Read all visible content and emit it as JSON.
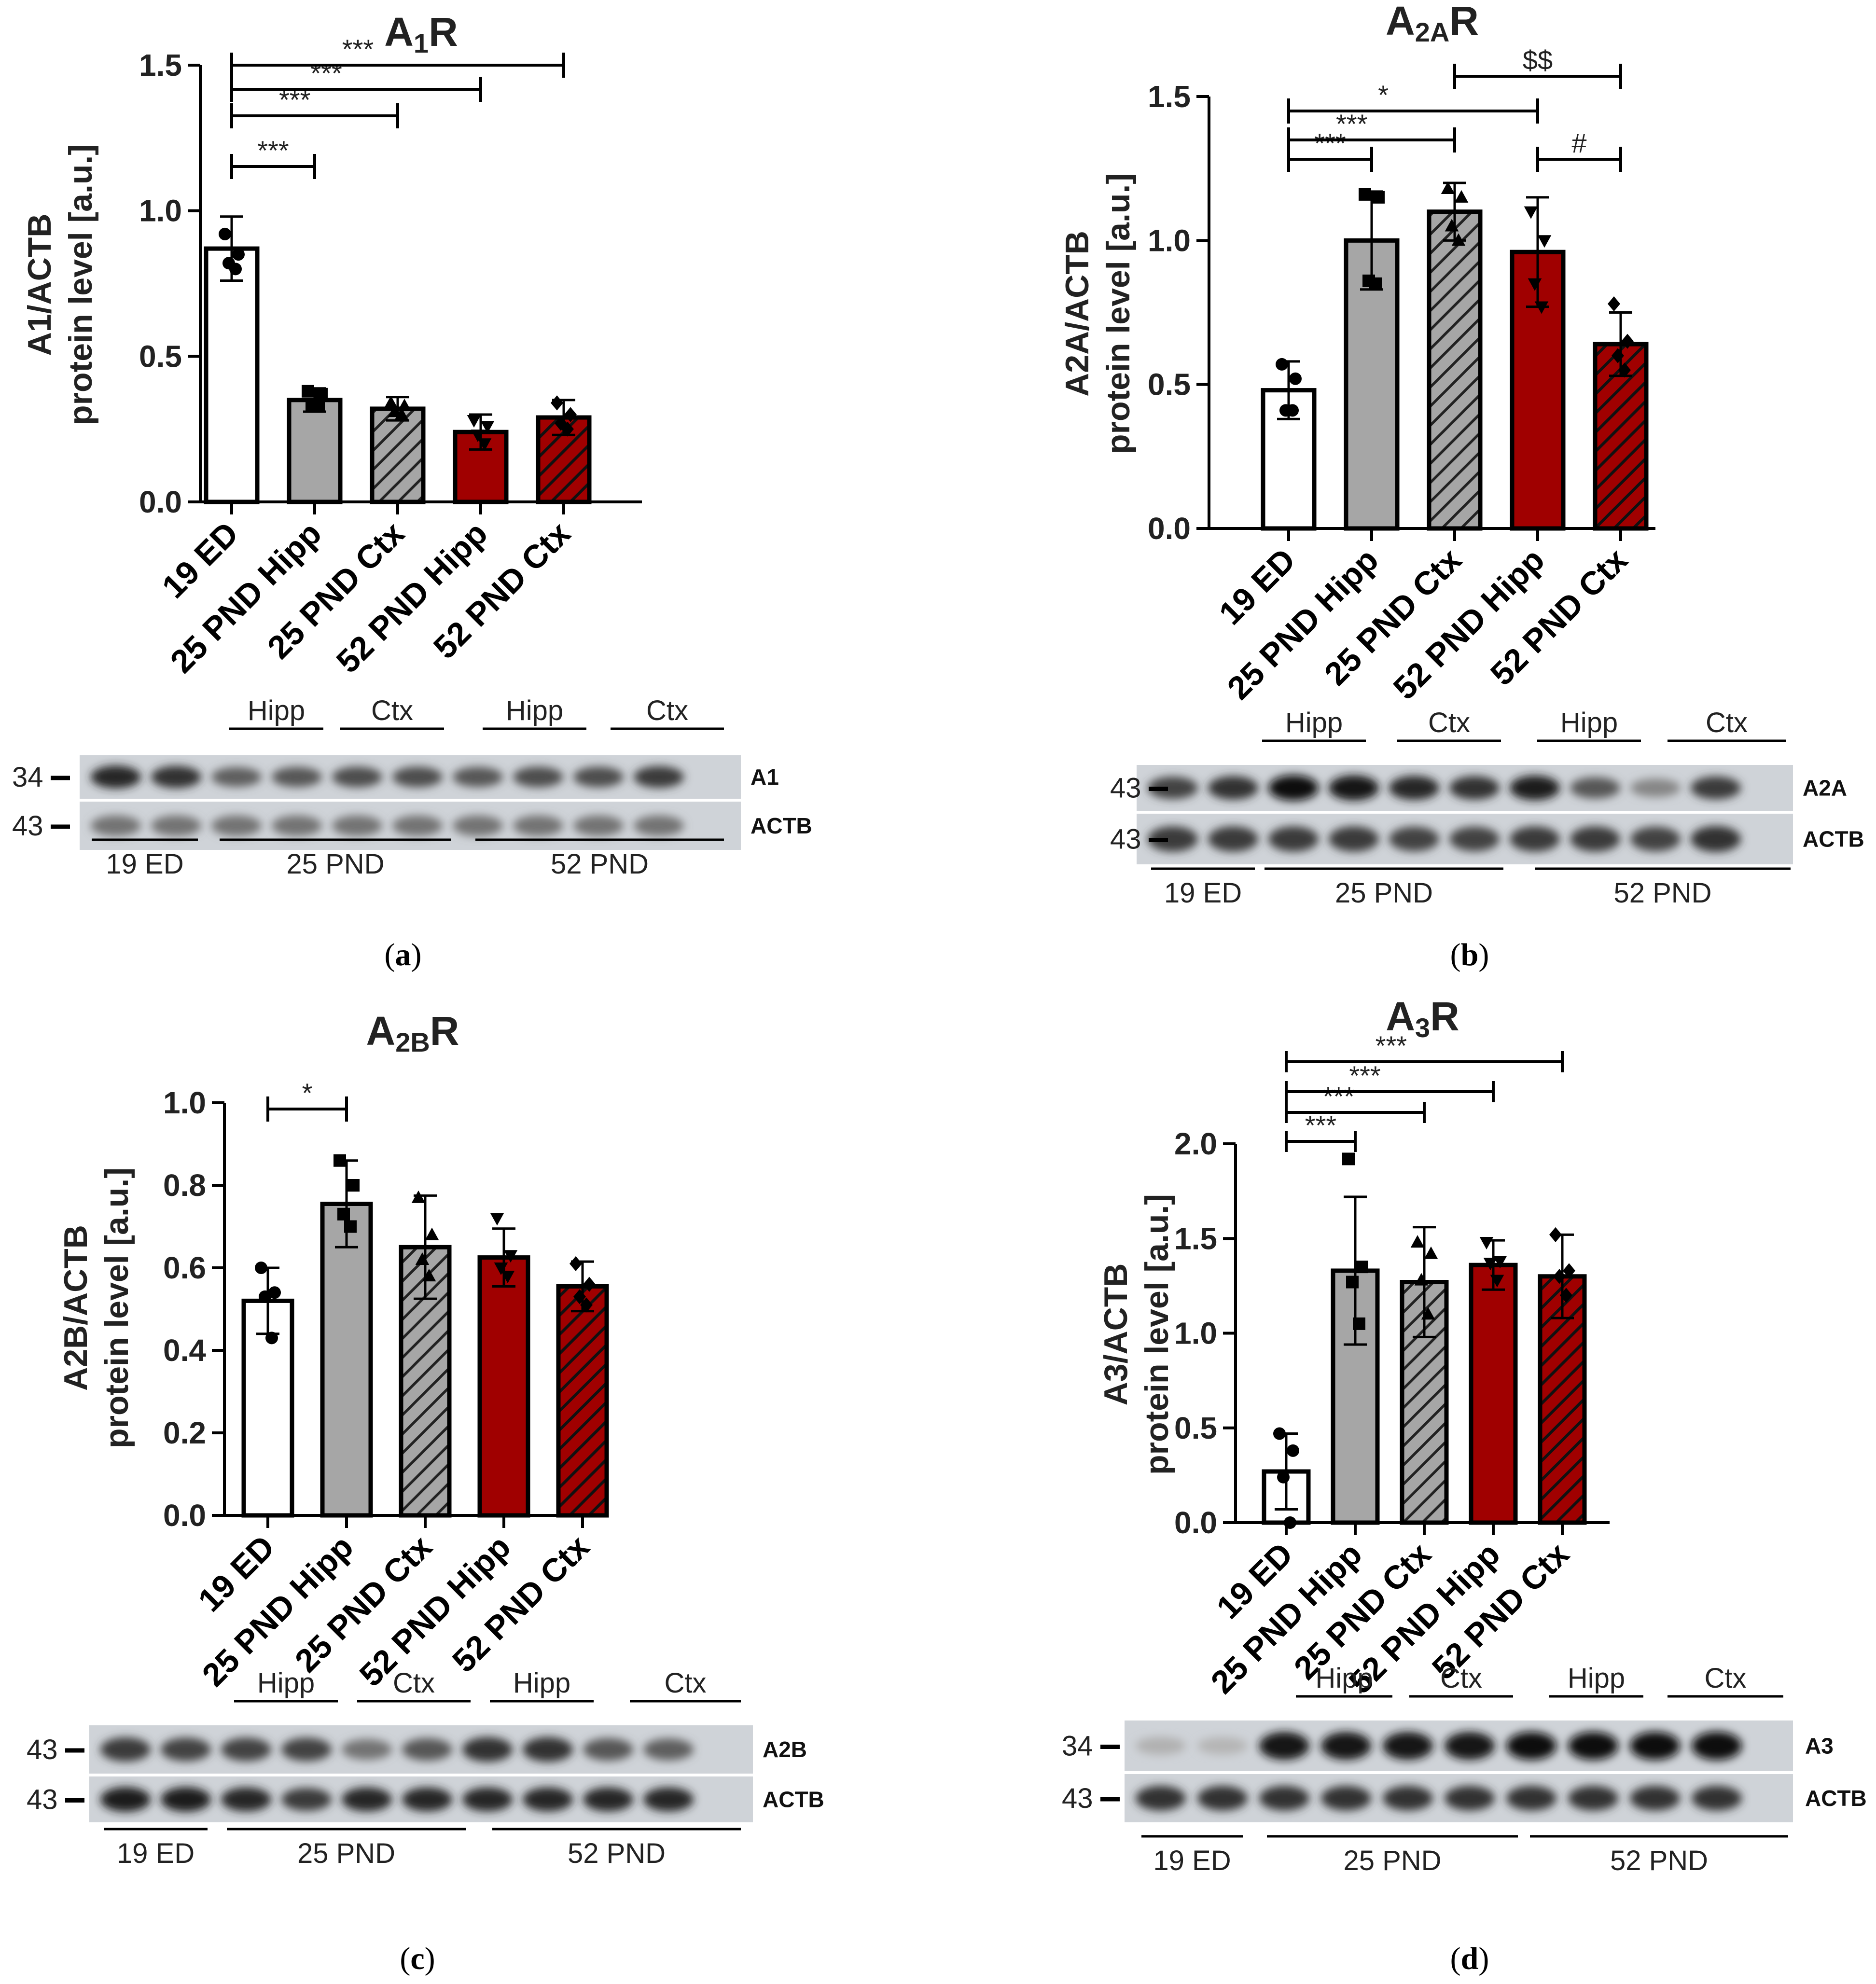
{
  "chart_data": [
    {
      "type": "bar",
      "panel_label": "a",
      "title": "A",
      "title_sub": "1",
      "title_suffix": "R",
      "ylabel_line1": "A1/ACTB",
      "ylabel_line2": "protein level [a.u.]",
      "categories": [
        "19 ED",
        "25 PND Hipp",
        "25 PND Ctx",
        "52 PND Hipp",
        "52 PND Ctx"
      ],
      "values": [
        0.87,
        0.35,
        0.32,
        0.24,
        0.29
      ],
      "errors": [
        0.11,
        0.04,
        0.04,
        0.06,
        0.06
      ],
      "points": [
        [
          0.92,
          0.85,
          0.82,
          0.8
        ],
        [
          0.38,
          0.37,
          0.33,
          0.33
        ],
        [
          0.34,
          0.33,
          0.31,
          0.3
        ],
        [
          0.28,
          0.26,
          0.23,
          0.2
        ],
        [
          0.34,
          0.3,
          0.27,
          0.25
        ]
      ],
      "ylim": [
        0,
        1.5
      ],
      "yticks": [
        "0.0",
        "0.5",
        "1.0",
        "1.5"
      ],
      "significance": [
        {
          "from": 0,
          "to": 1,
          "label": "***"
        },
        {
          "from": 0,
          "to": 2,
          "label": "***"
        },
        {
          "from": 0,
          "to": 3,
          "label": "***"
        },
        {
          "from": 0,
          "to": 4,
          "label": "***"
        }
      ],
      "blot": {
        "top_labels": [
          "Hipp",
          "Ctx",
          "Hipp",
          "Ctx"
        ],
        "bands": [
          "A1",
          "ACTB"
        ],
        "markers": [
          "34",
          "43"
        ],
        "bottom_labels": [
          "19 ED",
          "25 PND",
          "52 PND"
        ]
      }
    },
    {
      "type": "bar",
      "panel_label": "b",
      "title": "A",
      "title_sub": "2A",
      "title_suffix": "R",
      "ylabel_line1": "A2A/ACTB",
      "ylabel_line2": "protein level [a.u.]",
      "categories": [
        "19 ED",
        "25 PND Hipp",
        "25 PND Ctx",
        "52 PND Hipp",
        "52 PND Ctx"
      ],
      "values": [
        0.48,
        1.0,
        1.1,
        0.96,
        0.64
      ],
      "errors": [
        0.1,
        0.17,
        0.1,
        0.19,
        0.11
      ],
      "points": [
        [
          0.57,
          0.52,
          0.41,
          0.41
        ],
        [
          1.16,
          1.15,
          0.86,
          0.85
        ],
        [
          1.18,
          1.15,
          1.05,
          1.0
        ],
        [
          1.1,
          1.0,
          0.85,
          0.77
        ],
        [
          0.78,
          0.65,
          0.6,
          0.55
        ]
      ],
      "ylim": [
        0,
        1.5
      ],
      "yticks": [
        "0.0",
        "0.5",
        "1.0",
        "1.5"
      ],
      "significance": [
        {
          "from": 0,
          "to": 1,
          "label": "***"
        },
        {
          "from": 0,
          "to": 2,
          "label": "***"
        },
        {
          "from": 0,
          "to": 3,
          "label": "*"
        },
        {
          "from": 2,
          "to": 4,
          "label": "$$"
        },
        {
          "from": 3,
          "to": 4,
          "label": "#"
        }
      ],
      "blot": {
        "top_labels": [
          "Hipp",
          "Ctx",
          "Hipp",
          "Ctx"
        ],
        "bands": [
          "A2A",
          "ACTB"
        ],
        "markers": [
          "43",
          "43"
        ],
        "bottom_labels": [
          "19 ED",
          "25 PND",
          "52 PND"
        ]
      }
    },
    {
      "type": "bar",
      "panel_label": "c",
      "title": "A",
      "title_sub": "2B",
      "title_suffix": "R",
      "ylabel_line1": "A2B/ACTB",
      "ylabel_line2": "protein level [a.u.]",
      "categories": [
        "19 ED",
        "25 PND Hipp",
        "25 PND Ctx",
        "52 PND Hipp",
        "52 PND Ctx"
      ],
      "values": [
        0.52,
        0.755,
        0.65,
        0.625,
        0.555
      ],
      "errors": [
        0.08,
        0.105,
        0.125,
        0.07,
        0.06
      ],
      "points": [
        [
          0.6,
          0.54,
          0.53,
          0.43
        ],
        [
          0.86,
          0.8,
          0.73,
          0.7
        ],
        [
          0.77,
          0.68,
          0.62,
          0.58
        ],
        [
          0.72,
          0.63,
          0.6,
          0.58
        ],
        [
          0.61,
          0.56,
          0.53,
          0.51
        ]
      ],
      "ylim": [
        0,
        1.0
      ],
      "yticks": [
        "0.0",
        "0.2",
        "0.4",
        "0.6",
        "0.8",
        "1.0"
      ],
      "significance": [
        {
          "from": 0,
          "to": 1,
          "label": "*"
        }
      ],
      "blot": {
        "top_labels": [
          "Hipp",
          "Ctx",
          "Hipp",
          "Ctx"
        ],
        "bands": [
          "A2B",
          "ACTB"
        ],
        "markers": [
          "43",
          "43"
        ],
        "bottom_labels": [
          "19 ED",
          "25 PND",
          "52 PND"
        ]
      }
    },
    {
      "type": "bar",
      "panel_label": "d",
      "title": "A",
      "title_sub": "3",
      "title_suffix": "R",
      "ylabel_line1": "A3/ACTB",
      "ylabel_line2": "protein level [a.u.]",
      "categories": [
        "19 ED",
        "25 PND Hipp",
        "25 PND Ctx",
        "52 PND Hipp",
        "52 PND Ctx"
      ],
      "values": [
        0.27,
        1.33,
        1.27,
        1.36,
        1.3
      ],
      "errors": [
        0.2,
        0.39,
        0.29,
        0.13,
        0.22
      ],
      "points": [
        [
          0.47,
          0.38,
          0.24,
          0.0
        ],
        [
          1.92,
          1.35,
          1.27,
          1.05
        ],
        [
          1.48,
          1.42,
          1.28,
          1.1
        ],
        [
          1.48,
          1.38,
          1.37,
          1.28
        ],
        [
          1.52,
          1.33,
          1.3,
          1.2
        ]
      ],
      "ylim": [
        0,
        2.0
      ],
      "yticks": [
        "0.0",
        "0.5",
        "1.0",
        "1.5",
        "2.0"
      ],
      "significance": [
        {
          "from": 0,
          "to": 1,
          "label": "***"
        },
        {
          "from": 0,
          "to": 2,
          "label": "***"
        },
        {
          "from": 0,
          "to": 3,
          "label": "***"
        },
        {
          "from": 0,
          "to": 4,
          "label": "***"
        }
      ],
      "blot": {
        "top_labels": [
          "Hipp",
          "Ctx",
          "Hipp",
          "Ctx"
        ],
        "bands": [
          "A3",
          "ACTB"
        ],
        "markers": [
          "34",
          "43"
        ],
        "bottom_labels": [
          "19 ED",
          "25 PND",
          "52 PND"
        ]
      }
    }
  ],
  "colors": {
    "white_bar": "#ffffff",
    "gray_bar": "#a6a6a6",
    "red_bar": "#a00000",
    "blot_bg": "#cfd3d8"
  }
}
